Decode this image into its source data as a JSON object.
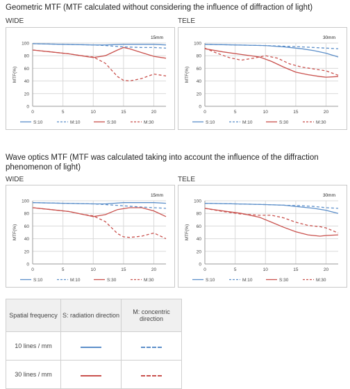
{
  "headings": {
    "geometric": "Geometric MTF (MTF calculated without considering the influence of diffraction of light)",
    "wave_line1": "Wave optics MTF (MTF was calculated taking into account the influence of the diffraction",
    "wave_line2": "phenomenon of light)"
  },
  "labels": {
    "wide": "WIDE",
    "tele": "TELE"
  },
  "colors": {
    "blue": "#5b8ec9",
    "red": "#c9504c",
    "grid": "#d9d9d9"
  },
  "chart_data": [
    {
      "type": "line",
      "focal": "15mm",
      "xlabel": "",
      "ylabel": "MTF(%)",
      "xlim": [
        0,
        22
      ],
      "ylim": [
        0,
        100
      ],
      "xticks": [
        0,
        5,
        10,
        15,
        20
      ],
      "yticks": [
        0,
        20,
        40,
        60,
        80,
        100
      ],
      "series": [
        {
          "name": "S:10",
          "color": "blue",
          "dash": false,
          "x": [
            0,
            5,
            10,
            12,
            15,
            18,
            20,
            22
          ],
          "y": [
            99,
            98,
            97,
            97,
            98,
            98,
            98,
            97
          ]
        },
        {
          "name": "M:10",
          "color": "blue",
          "dash": true,
          "x": [
            0,
            5,
            10,
            12,
            15,
            18,
            20,
            22
          ],
          "y": [
            99,
            98,
            97,
            96,
            94,
            93,
            93,
            92
          ]
        },
        {
          "name": "S:30",
          "color": "red",
          "dash": false,
          "x": [
            0,
            3,
            6,
            8,
            10,
            12,
            14,
            15,
            16,
            18,
            20,
            22
          ],
          "y": [
            89,
            86,
            83,
            80,
            77,
            80,
            89,
            93,
            91,
            85,
            79,
            76
          ]
        },
        {
          "name": "M:30",
          "color": "red",
          "dash": true,
          "x": [
            0,
            3,
            6,
            8,
            10,
            12,
            14,
            15,
            16,
            18,
            20,
            22
          ],
          "y": [
            89,
            86,
            83,
            80,
            78,
            68,
            47,
            41,
            40,
            44,
            51,
            48
          ]
        }
      ]
    },
    {
      "type": "line",
      "focal": "30mm",
      "xlabel": "",
      "ylabel": "MTF(%)",
      "xlim": [
        0,
        22
      ],
      "ylim": [
        0,
        100
      ],
      "xticks": [
        0,
        5,
        10,
        15,
        20
      ],
      "yticks": [
        0,
        20,
        40,
        60,
        80,
        100
      ],
      "series": [
        {
          "name": "S:10",
          "color": "blue",
          "dash": false,
          "x": [
            0,
            5,
            10,
            13,
            16,
            18,
            20,
            22
          ],
          "y": [
            98,
            97,
            96,
            94,
            91,
            88,
            84,
            78
          ]
        },
        {
          "name": "M:10",
          "color": "blue",
          "dash": true,
          "x": [
            0,
            5,
            10,
            13,
            16,
            18,
            20,
            22
          ],
          "y": [
            98,
            97,
            96,
            95,
            94,
            93,
            92,
            91
          ]
        },
        {
          "name": "S:30",
          "color": "red",
          "dash": false,
          "x": [
            0,
            3,
            6,
            9,
            11,
            13,
            15,
            17,
            19,
            20,
            22
          ],
          "y": [
            91,
            86,
            82,
            78,
            71,
            62,
            54,
            50,
            47,
            46,
            47
          ]
        },
        {
          "name": "M:30",
          "color": "red",
          "dash": true,
          "x": [
            0,
            2,
            4,
            6,
            8,
            10,
            12,
            14,
            16,
            18,
            20,
            22
          ],
          "y": [
            92,
            84,
            77,
            73,
            76,
            80,
            76,
            67,
            62,
            59,
            56,
            49
          ]
        }
      ]
    },
    {
      "type": "line",
      "focal": "15mm",
      "xlabel": "",
      "ylabel": "MTF(%)",
      "xlim": [
        0,
        22
      ],
      "ylim": [
        0,
        100
      ],
      "xticks": [
        0,
        5,
        10,
        15,
        20
      ],
      "yticks": [
        0,
        20,
        40,
        60,
        80,
        100
      ],
      "series": [
        {
          "name": "S:10",
          "color": "blue",
          "dash": false,
          "x": [
            0,
            5,
            10,
            12,
            15,
            18,
            20,
            22
          ],
          "y": [
            97,
            96,
            95,
            95,
            97,
            97,
            97,
            96
          ]
        },
        {
          "name": "M:10",
          "color": "blue",
          "dash": true,
          "x": [
            0,
            5,
            10,
            12,
            15,
            18,
            20,
            22
          ],
          "y": [
            97,
            96,
            95,
            94,
            92,
            90,
            89,
            88
          ]
        },
        {
          "name": "S:30",
          "color": "red",
          "dash": false,
          "x": [
            0,
            3,
            6,
            8,
            10,
            12,
            14,
            16,
            18,
            20,
            22
          ],
          "y": [
            89,
            86,
            83,
            79,
            75,
            78,
            86,
            89,
            89,
            84,
            75
          ]
        },
        {
          "name": "M:30",
          "color": "red",
          "dash": true,
          "x": [
            0,
            3,
            6,
            8,
            10,
            12,
            14,
            15,
            16,
            18,
            20,
            22
          ],
          "y": [
            89,
            86,
            83,
            79,
            76,
            67,
            48,
            43,
            42,
            44,
            49,
            40
          ]
        }
      ]
    },
    {
      "type": "line",
      "focal": "30mm",
      "xlabel": "",
      "ylabel": "MTF(%)",
      "xlim": [
        0,
        22
      ],
      "ylim": [
        0,
        100
      ],
      "xticks": [
        0,
        5,
        10,
        15,
        20
      ],
      "yticks": [
        0,
        20,
        40,
        60,
        80,
        100
      ],
      "series": [
        {
          "name": "S:10",
          "color": "blue",
          "dash": false,
          "x": [
            0,
            5,
            10,
            13,
            16,
            18,
            20,
            22
          ],
          "y": [
            96,
            95,
            94,
            93,
            90,
            88,
            85,
            80
          ]
        },
        {
          "name": "M:10",
          "color": "blue",
          "dash": true,
          "x": [
            0,
            5,
            10,
            13,
            16,
            18,
            20,
            22
          ],
          "y": [
            96,
            95,
            94,
            93,
            92,
            91,
            89,
            88
          ]
        },
        {
          "name": "S:30",
          "color": "red",
          "dash": false,
          "x": [
            0,
            3,
            6,
            9,
            11,
            13,
            15,
            17,
            19,
            20,
            22
          ],
          "y": [
            88,
            84,
            80,
            74,
            66,
            58,
            51,
            46,
            44,
            45,
            46
          ]
        },
        {
          "name": "M:30",
          "color": "red",
          "dash": true,
          "x": [
            0,
            3,
            6,
            9,
            11,
            13,
            15,
            17,
            19,
            20,
            22
          ],
          "y": [
            88,
            83,
            79,
            77,
            77,
            73,
            66,
            61,
            59,
            57,
            49
          ]
        }
      ]
    }
  ],
  "legend_table": {
    "headers": [
      "Spatial frequency",
      "S: radiation direction",
      "M: concentric direction"
    ],
    "rows": [
      {
        "label": "10 lines / mm",
        "color": "blue"
      },
      {
        "label": "30 lines / mm",
        "color": "red"
      }
    ]
  }
}
